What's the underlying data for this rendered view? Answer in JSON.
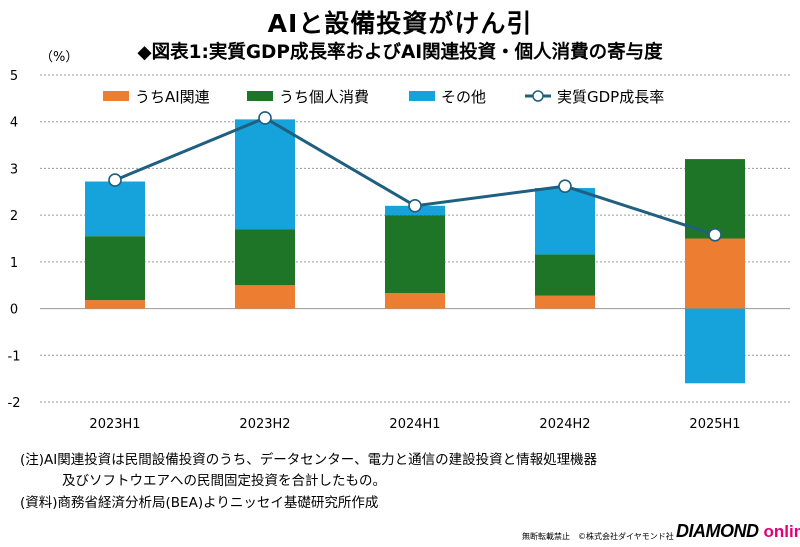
{
  "headline": "AIと設備投資がけん引",
  "subtitle": "◆図表1:実質GDP成長率およびAI関連投資・個人消費の寄与度",
  "unit_label": "（%）",
  "chart_data": {
    "type": "bar",
    "stacked": true,
    "categories": [
      "2023H1",
      "2023H2",
      "2024H1",
      "2024H2",
      "2025H1"
    ],
    "y_ticks": [
      5,
      4,
      3,
      2,
      1,
      0,
      -1,
      -2
    ],
    "ylim": [
      -2,
      5
    ],
    "series": [
      {
        "name": "うちAI関連",
        "color": "#ed7d31",
        "values": [
          0.18,
          0.5,
          0.33,
          0.28,
          1.5
        ]
      },
      {
        "name": "うち個人消費",
        "color": "#1e7528",
        "values": [
          1.37,
          1.2,
          1.67,
          0.88,
          1.7
        ]
      },
      {
        "name": "その他",
        "color": "#16a3dc",
        "values": [
          1.17,
          2.35,
          0.2,
          1.42,
          -1.6
        ]
      }
    ],
    "line": {
      "name": "実質GDP成長率",
      "color": "#1f5f7f",
      "values": [
        2.75,
        4.08,
        2.2,
        2.62,
        1.58
      ]
    },
    "legend_position": "top"
  },
  "notes": [
    "(注)AI関連投資は民間設備投資のうち、データセンター、電力と通信の建設投資と情報処理機器",
    "及びソフトウエアへの民間固定投資を合計したもの。",
    "(資料)商務省経済分析局(BEA)よりニッセイ基礎研究所作成"
  ],
  "credit": "無断転載禁止　©株式会社ダイヤモンド社",
  "brand": {
    "part1": "DIAMOND",
    "part2": "online"
  }
}
